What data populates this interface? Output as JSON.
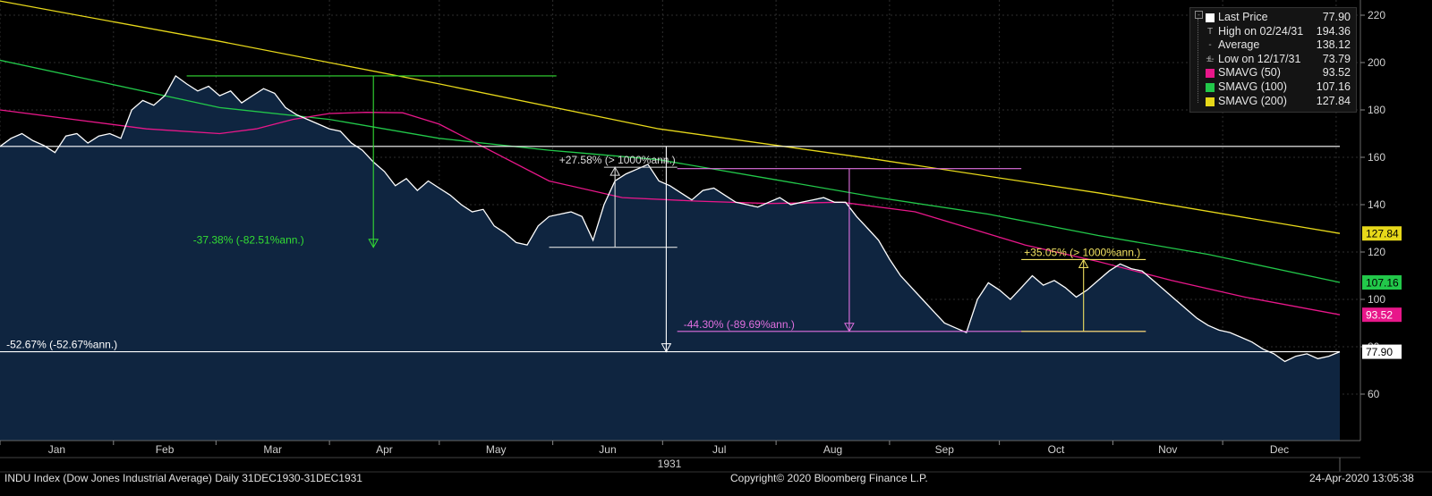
{
  "chart_data": {
    "type": "line",
    "title": "INDU Index (Dow Jones Industrial Average)",
    "frequency": "Daily",
    "date_range": "31DEC1930-31DEC1931",
    "year_label": "1931",
    "x_ticks": [
      "Jan",
      "Feb",
      "Mar",
      "Apr",
      "May",
      "Jun",
      "Jul",
      "Aug",
      "Sep",
      "Oct",
      "Nov",
      "Dec"
    ],
    "y_ticks": [
      60,
      80,
      100,
      120,
      140,
      160,
      180,
      200,
      220
    ],
    "ylim": [
      41,
      222
    ],
    "grid": true,
    "axis_side": "right",
    "legend_position": "top-right",
    "series": [
      {
        "name": "Last Price",
        "color": "#ffffff",
        "area_color": "#0f2540",
        "x": [
          0,
          3,
          6,
          9,
          12,
          15,
          18,
          21,
          24,
          27,
          30,
          33,
          36,
          39,
          42,
          45,
          48,
          51,
          54,
          57,
          60,
          63,
          66,
          69,
          72,
          75,
          78,
          81,
          84,
          87,
          90,
          93,
          96,
          99,
          102,
          105,
          108,
          111,
          114,
          117,
          120,
          123,
          126,
          129,
          132,
          135,
          138,
          141,
          144,
          147,
          150,
          153,
          156,
          159,
          162,
          165,
          168,
          171,
          174,
          177,
          180,
          183,
          186,
          189,
          192,
          195,
          198,
          201,
          204,
          207,
          210,
          213,
          216,
          219,
          222,
          225,
          228,
          231,
          234,
          237,
          240,
          243,
          246,
          249,
          252,
          255,
          258,
          261,
          264,
          267,
          270,
          273,
          276,
          279,
          282,
          285,
          288,
          291,
          294,
          297,
          300,
          303,
          306,
          309,
          312,
          315,
          318,
          321,
          324,
          327,
          330,
          333,
          336,
          339,
          342,
          345,
          348,
          351,
          354,
          357,
          360,
          363,
          366
        ],
        "values": [
          164.6,
          168,
          170,
          167,
          165,
          162,
          169,
          170,
          166,
          169,
          170,
          168,
          180,
          184,
          182,
          186,
          194.36,
          191,
          188,
          190,
          186,
          188,
          183,
          186,
          189,
          187,
          181,
          178,
          176,
          174,
          172,
          171,
          166,
          163,
          158,
          154,
          148,
          151,
          146,
          150,
          147,
          144,
          140,
          137,
          138,
          131,
          128,
          124,
          123,
          131,
          135,
          136,
          137,
          135,
          125,
          140,
          150,
          153,
          155,
          157,
          150,
          148,
          145,
          142,
          146,
          147,
          144,
          141,
          140,
          139,
          141,
          143,
          140,
          141,
          142,
          143,
          141,
          141,
          135,
          130,
          125,
          117,
          110,
          105,
          100,
          95,
          90,
          88,
          86,
          100,
          107,
          104,
          100,
          105,
          110,
          106,
          108,
          105,
          101,
          104,
          108,
          112,
          115,
          113,
          112,
          108,
          104,
          100,
          96,
          92,
          89,
          87,
          86,
          84,
          82,
          79,
          77,
          73.79,
          76,
          77,
          75,
          76,
          77.9
        ]
      },
      {
        "name": "SMAVG (50)",
        "color": "#e8178a",
        "x": [
          0,
          20,
          40,
          60,
          70,
          80,
          90,
          100,
          110,
          120,
          130,
          150,
          170,
          190,
          210,
          230,
          250,
          265,
          280,
          300,
          320,
          340,
          366
        ],
        "values": [
          180,
          176,
          172,
          170,
          172,
          176,
          178.5,
          179,
          178.8,
          174,
          166,
          150,
          143,
          141.5,
          140.5,
          141,
          137,
          130,
          123,
          116,
          108,
          101,
          93.52
        ]
      },
      {
        "name": "SMAVG (100)",
        "color": "#22c84a",
        "x": [
          0,
          30,
          60,
          90,
          120,
          150,
          180,
          210,
          240,
          270,
          300,
          330,
          366
        ],
        "values": [
          201,
          191,
          181,
          176,
          168,
          163,
          159,
          151,
          143,
          136,
          127,
          119,
          107.16
        ]
      },
      {
        "name": "SMAVG (200)",
        "color": "#e7d81a",
        "x": [
          0,
          60,
          120,
          180,
          240,
          300,
          366
        ],
        "values": [
          226,
          209,
          191,
          172,
          159,
          145,
          127.84
        ]
      }
    ],
    "legend": [
      {
        "name": "Last Price",
        "value": "77.90",
        "glyph": "box",
        "color": "#ffffff"
      },
      {
        "name": "High on 02/24/31",
        "value": "194.36",
        "glyph": "T",
        "color": "#aaaaaa"
      },
      {
        "name": "Average",
        "value": "138.12",
        "glyph": "-+-",
        "color": "#aaaaaa"
      },
      {
        "name": "Low on 12/17/31",
        "value": "73.79",
        "glyph": "⊥",
        "color": "#aaaaaa"
      },
      {
        "name": "SMAVG (50)",
        "value": "93.52",
        "glyph": "box",
        "color": "#e8178a"
      },
      {
        "name": "SMAVG (100)",
        "value": "107.16",
        "glyph": "box",
        "color": "#22c84a"
      },
      {
        "name": "SMAVG (200)",
        "value": "127.84",
        "glyph": "box",
        "color": "#e7d81a"
      }
    ],
    "axis_tags": [
      {
        "value": 127.84,
        "label": "127.84",
        "bg": "#e7d81a",
        "fg": "#000000"
      },
      {
        "value": 107.16,
        "label": "107.16",
        "bg": "#22c84a",
        "fg": "#000000"
      },
      {
        "value": 93.52,
        "label": "93.52",
        "bg": "#e8178a",
        "fg": "#ffffff"
      },
      {
        "value": 77.9,
        "label": "77.90",
        "bg": "#ffffff",
        "fg": "#000000"
      }
    ],
    "reference_lines": [
      {
        "value": 164.6,
        "color": "#ffffff",
        "x0": 0,
        "x1": 366
      },
      {
        "value": 77.9,
        "color": "#ffffff",
        "x0": 0,
        "x1": 366
      }
    ],
    "annotations": [
      {
        "label": "-37.38% (-82.51%ann.)",
        "color": "#33dd33",
        "x_from": 0,
        "x_to": 150,
        "top_value": 194.36,
        "top_x0": 51,
        "top_x1": 152,
        "bottom_value": 122,
        "arrow_x": 102,
        "dir": "down",
        "label_x": 52,
        "label_value": 122
      },
      {
        "label": "+27.58% (> 1000%ann.)",
        "color": "#dddddd",
        "x_from": 150,
        "x_to": 185,
        "top_value": 155.8,
        "top_x0": 165,
        "top_x1": 185,
        "bottom_value": 122,
        "bottom_x0": 150,
        "bottom_x1": 185,
        "arrow_x": 168,
        "dir": "up",
        "label_x": 152,
        "label_value": 155.8
      },
      {
        "label": "-44.30% (-89.69%ann.)",
        "color": "#e070e0",
        "x_from": 185,
        "x_to": 313,
        "top_value": 155.2,
        "top_x0": 185,
        "top_x1": 279,
        "bottom_value": 86.5,
        "bottom_x0": 185,
        "bottom_x1": 313,
        "arrow_x": 232,
        "dir": "down",
        "label_x": 186,
        "label_value": 86.5
      },
      {
        "label": "+35.05% (> 1000%ann.)",
        "color": "#f0e060",
        "x_from": 279,
        "x_to": 313,
        "top_value": 116.8,
        "top_x0": 279,
        "top_x1": 313,
        "bottom_value": 86.5,
        "bottom_x0": 279,
        "bottom_x1": 313,
        "arrow_x": 296,
        "dir": "up",
        "label_x": 279,
        "label_value": 116.8
      },
      {
        "label": "-52.67% (-52.67%ann.)",
        "color": "#ffffff",
        "x_from": 0,
        "x_to": 366,
        "label_x": 1,
        "label_value": 77.9
      },
      {
        "label": "",
        "color": "#ffffff",
        "x_from": 0,
        "x_to": 366,
        "top_value": 164.6,
        "bottom_value": 77.9,
        "arrow_x": 182,
        "dir": "down",
        "label_x": 1,
        "label_value": 77.9
      }
    ]
  },
  "footer": {
    "left": "INDU Index (Dow Jones Industrial Average)  Daily 31DEC1930-31DEC1931",
    "center": "Copyright© 2020 Bloomberg Finance L.P.",
    "right": "24-Apr-2020 13:05:38"
  }
}
